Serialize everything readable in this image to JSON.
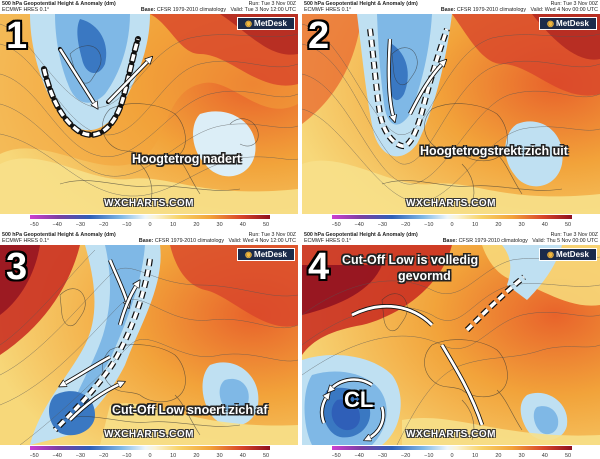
{
  "shared": {
    "product": "500 hPa Geopotential Height & Anomaly (dm)",
    "model": "ECMWF HRES 0.1°",
    "run": "Run: Tue 3 Nov 00Z",
    "base_prefix": "Base:",
    "base_value": "CFSR 1979-2010 climatology",
    "logo": "MetDesk",
    "watermark": "WXCHARTS.COM",
    "colorbar_ticks": [
      "−50",
      "−40",
      "−30",
      "−20",
      "−10",
      "0",
      "10",
      "20",
      "30",
      "40",
      "50"
    ],
    "colors": {
      "strong_neg": "#7b3fa3",
      "neg": "#3a78c2",
      "weak_neg": "#bfe0f2",
      "neutral": "#f2f2ec",
      "weak_pos": "#f7e08a",
      "pos": "#f2a33a",
      "strong_pos": "#c8281e"
    }
  },
  "panels": [
    {
      "number": "1",
      "valid": "Valid: Tue 3 Nov 12:00 UTC",
      "caption": "Hoogtetrog nadert"
    },
    {
      "number": "2",
      "valid": "Valid: Wed 4 Nov 00:00 UTC",
      "caption": "Hoogtetrogstrekt zich uit"
    },
    {
      "number": "3",
      "valid": "Valid: Wed 4 Nov 12:00 UTC",
      "caption": "Cut-Off Low snoert zich af"
    },
    {
      "number": "4",
      "valid": "Valid: Thu 5 Nov 00:00 UTC",
      "caption_line1": "Cut-Off Low is volledig",
      "caption_line2": "gevormd",
      "cutoff_label": "CL"
    }
  ]
}
